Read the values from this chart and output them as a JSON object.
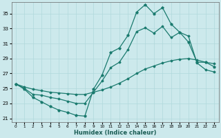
{
  "xlabel": "Humidex (Indice chaleur)",
  "background_color": "#cce9ec",
  "line_color": "#1a7a6e",
  "x_ticks": [
    0,
    1,
    2,
    3,
    4,
    5,
    6,
    7,
    8,
    9,
    10,
    11,
    12,
    13,
    14,
    15,
    16,
    17,
    18,
    19,
    20,
    21,
    22,
    23
  ],
  "y_ticks": [
    21,
    23,
    25,
    27,
    29,
    31,
    33,
    35
  ],
  "xlim": [
    -0.5,
    23.5
  ],
  "ylim": [
    20.5,
    36.5
  ],
  "series_top": [
    25.6,
    24.9,
    23.8,
    23.2,
    22.6,
    22.1,
    21.8,
    21.4,
    21.3,
    24.9,
    26.8,
    29.8,
    30.4,
    32.1,
    35.2,
    36.2,
    35.0,
    35.8,
    33.6,
    32.5,
    31.2,
    28.5,
    28.5,
    27.9
  ],
  "series_mid": [
    25.6,
    25.0,
    24.2,
    24.1,
    23.8,
    23.6,
    23.3,
    23.0,
    23.0,
    24.5,
    26.0,
    27.8,
    28.5,
    30.2,
    32.6,
    33.1,
    32.4,
    33.3,
    31.8,
    32.5,
    32.0,
    28.4,
    27.5,
    27.2
  ],
  "series_flat": [
    25.6,
    25.2,
    24.9,
    24.7,
    24.5,
    24.4,
    24.3,
    24.2,
    24.2,
    24.5,
    24.8,
    25.2,
    25.7,
    26.3,
    27.0,
    27.6,
    28.0,
    28.4,
    28.7,
    28.9,
    29.0,
    28.8,
    28.5,
    28.3
  ]
}
